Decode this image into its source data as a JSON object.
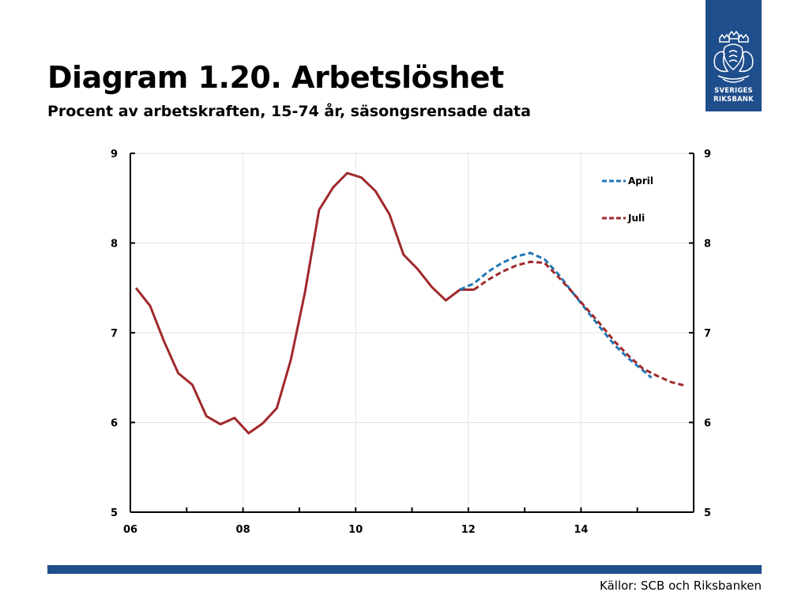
{
  "header": {
    "title": "Diagram 1.20. Arbetslöshet",
    "subtitle": "Procent av arbetskraften, 15-74 år, säsongsrensade data"
  },
  "logo": {
    "line1": "SVERIGES",
    "line2": "RIKSBANK",
    "color": "#1f4e8c",
    "icon": "riksbank-crown-emblem"
  },
  "footer": {
    "source": "Källor: SCB och Riksbanken",
    "bar_color": "#1f4e8c"
  },
  "chart_data": {
    "type": "line",
    "title": "",
    "xlabel": "",
    "ylabel": "",
    "xlim": [
      2006.0,
      2016.0
    ],
    "ylim": [
      5,
      9
    ],
    "x_ticks": [
      2006,
      2008,
      2010,
      2012,
      2014
    ],
    "x_tick_labels": [
      "06",
      "08",
      "10",
      "12",
      "14"
    ],
    "y_ticks": [
      5,
      6,
      7,
      8,
      9
    ],
    "y_tick_labels": [
      "5",
      "6",
      "7",
      "8",
      "9"
    ],
    "grid": true,
    "legend_position": "top-right",
    "series": [
      {
        "name": "",
        "style": "solid",
        "color": "#a0282b",
        "points": [
          [
            2006.1,
            7.5
          ],
          [
            2006.35,
            7.3
          ],
          [
            2006.6,
            6.9
          ],
          [
            2006.85,
            6.55
          ],
          [
            2007.1,
            6.42
          ],
          [
            2007.35,
            6.07
          ],
          [
            2007.6,
            5.98
          ],
          [
            2007.85,
            6.05
          ],
          [
            2008.1,
            5.88
          ],
          [
            2008.35,
            5.99
          ],
          [
            2008.6,
            6.16
          ],
          [
            2008.85,
            6.7
          ],
          [
            2009.1,
            7.45
          ],
          [
            2009.35,
            8.37
          ],
          [
            2009.6,
            8.62
          ],
          [
            2009.85,
            8.78
          ],
          [
            2010.1,
            8.73
          ],
          [
            2010.35,
            8.58
          ],
          [
            2010.6,
            8.32
          ],
          [
            2010.85,
            7.87
          ],
          [
            2011.1,
            7.71
          ],
          [
            2011.35,
            7.51
          ],
          [
            2011.6,
            7.36
          ],
          [
            2011.85,
            7.48
          ],
          [
            2012.1,
            7.48
          ]
        ]
      },
      {
        "name": "April",
        "style": "dashed",
        "color": "#1f77b4",
        "points": [
          [
            2011.85,
            7.48
          ],
          [
            2012.1,
            7.55
          ],
          [
            2012.35,
            7.68
          ],
          [
            2012.6,
            7.78
          ],
          [
            2012.85,
            7.85
          ],
          [
            2013.1,
            7.89
          ],
          [
            2013.35,
            7.82
          ],
          [
            2013.6,
            7.65
          ],
          [
            2013.85,
            7.45
          ],
          [
            2014.1,
            7.25
          ],
          [
            2014.35,
            7.05
          ],
          [
            2014.6,
            6.86
          ],
          [
            2014.85,
            6.71
          ],
          [
            2015.1,
            6.58
          ],
          [
            2015.25,
            6.5
          ]
        ]
      },
      {
        "name": "Juli",
        "style": "dashed",
        "color": "#a0282b",
        "points": [
          [
            2012.1,
            7.48
          ],
          [
            2012.35,
            7.59
          ],
          [
            2012.6,
            7.68
          ],
          [
            2012.85,
            7.75
          ],
          [
            2013.1,
            7.79
          ],
          [
            2013.35,
            7.78
          ],
          [
            2013.6,
            7.62
          ],
          [
            2013.85,
            7.45
          ],
          [
            2014.1,
            7.27
          ],
          [
            2014.35,
            7.09
          ],
          [
            2014.6,
            6.9
          ],
          [
            2014.85,
            6.74
          ],
          [
            2015.1,
            6.6
          ],
          [
            2015.35,
            6.52
          ],
          [
            2015.6,
            6.45
          ],
          [
            2015.85,
            6.41
          ]
        ]
      }
    ]
  }
}
